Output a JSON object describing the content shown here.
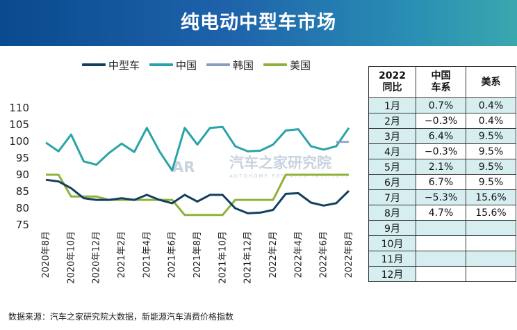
{
  "title": "纯电动中型车市场",
  "legend": [
    {
      "name": "中型车",
      "color": "#123f5e"
    },
    {
      "name": "中国",
      "color": "#2aa3a8"
    },
    {
      "name": "韩国",
      "color": "#8b9cc4"
    },
    {
      "name": "美国",
      "color": "#8fb13a"
    }
  ],
  "chart_data": {
    "type": "line",
    "x": [
      "2020年8月",
      "2020年9月",
      "2020年10月",
      "2020年11月",
      "2020年12月",
      "2021年1月",
      "2021年2月",
      "2021年3月",
      "2021年4月",
      "2021年5月",
      "2021年6月",
      "2021年7月",
      "2021年8月",
      "2021年9月",
      "2021年10月",
      "2021年11月",
      "2021年12月",
      "2022年1月",
      "2022年2月",
      "2022年3月",
      "2022年4月",
      "2022年5月",
      "2022年6月",
      "2022年7月",
      "2022年8月"
    ],
    "x_tick_labels": [
      "2020年8月",
      "2020年10月",
      "2020年12月",
      "2021年2月",
      "2021年4月",
      "2021年6月",
      "2021年8月",
      "2021年10月",
      "2021年12月",
      "2022年2月",
      "2022年4月",
      "2022年6月",
      "2022年8月"
    ],
    "y_ticks": [
      75,
      80,
      85,
      90,
      95,
      100,
      105,
      110
    ],
    "ylim": [
      74,
      111
    ],
    "series": [
      {
        "name": "中型车",
        "values": [
          88.5,
          88,
          86,
          83,
          82.5,
          82.5,
          83,
          82.5,
          84,
          82.5,
          81.5,
          84,
          82,
          84,
          84,
          80,
          78.5,
          78.7,
          79.5,
          84.3,
          84.5,
          81.7,
          80.8,
          81.5,
          85.2
        ]
      },
      {
        "name": "中国",
        "values": [
          99.6,
          97,
          102,
          94,
          93,
          96.5,
          99.3,
          96.8,
          104,
          97,
          91.3,
          104,
          99,
          104,
          104.3,
          98.5,
          97,
          97.2,
          99,
          103.2,
          103.6,
          98.5,
          97.5,
          98.5,
          104
        ]
      },
      {
        "name": "韩国",
        "values": [
          null,
          null,
          null,
          null,
          null,
          null,
          null,
          null,
          null,
          null,
          null,
          null,
          null,
          null,
          null,
          null,
          null,
          null,
          null,
          null,
          null,
          null,
          null,
          99.8,
          99.8
        ]
      },
      {
        "name": "美国",
        "values": [
          90,
          90,
          83.5,
          83.5,
          83.5,
          82.5,
          82.5,
          82.5,
          82.5,
          82.5,
          82.5,
          78,
          78,
          78,
          78,
          82.5,
          82.5,
          82.5,
          82.5,
          90,
          90,
          90,
          90,
          90,
          90
        ]
      }
    ]
  },
  "watermark": {
    "main": "汽车之家研究院",
    "sub": "AUTOHOME RESEARCH INSTITUTE"
  },
  "table": {
    "headers": [
      "2022\n同比",
      "中国\n车系",
      "美系"
    ],
    "rows": [
      {
        "month": "1月",
        "cn": "0.7%",
        "us": "0.4%"
      },
      {
        "month": "2月",
        "cn": "−0.3%",
        "us": "0.4%"
      },
      {
        "month": "3月",
        "cn": "6.4%",
        "us": "9.5%"
      },
      {
        "month": "4月",
        "cn": "−0.3%",
        "us": "9.5%"
      },
      {
        "month": "5月",
        "cn": "2.1%",
        "us": "9.5%"
      },
      {
        "month": "6月",
        "cn": "6.7%",
        "us": "9.5%"
      },
      {
        "month": "7月",
        "cn": "−5.3%",
        "us": "15.6%"
      },
      {
        "month": "8月",
        "cn": "4.7%",
        "us": "15.6%"
      },
      {
        "month": "9月",
        "cn": "",
        "us": ""
      },
      {
        "month": "10月",
        "cn": "",
        "us": ""
      },
      {
        "month": "11月",
        "cn": "",
        "us": ""
      },
      {
        "month": "12月",
        "cn": "",
        "us": ""
      }
    ]
  },
  "source": "数据来源：汽车之家研究院大数据，新能源汽车消费价格指数"
}
